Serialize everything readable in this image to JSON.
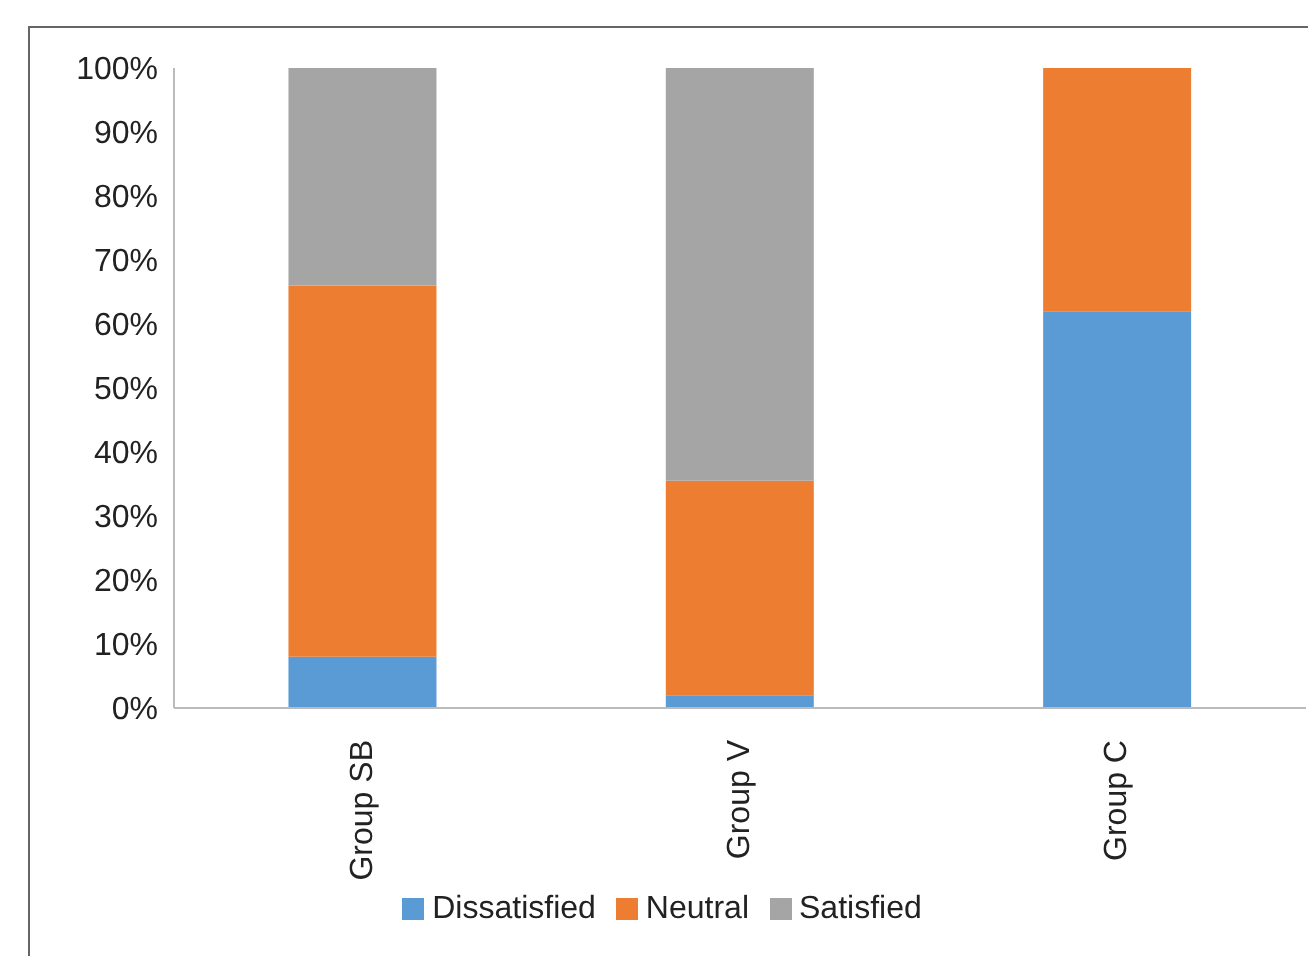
{
  "chart_data": {
    "type": "bar",
    "stacked": true,
    "categories": [
      "Group SB",
      "Group V",
      "Group C"
    ],
    "series": [
      {
        "name": "Dissatisfied",
        "color": "#5b9bd5",
        "values": [
          8,
          2,
          62
        ]
      },
      {
        "name": "Neutral",
        "color": "#ed7d31",
        "values": [
          58,
          33.5,
          38
        ]
      },
      {
        "name": "Satisfied",
        "color": "#a5a5a5",
        "values": [
          34,
          64.5,
          0
        ]
      }
    ],
    "ylim": [
      0,
      100
    ],
    "yticks": [
      {
        "value": 0,
        "label": "0%"
      },
      {
        "value": 10,
        "label": "10%"
      },
      {
        "value": 20,
        "label": "20%"
      },
      {
        "value": 30,
        "label": "30%"
      },
      {
        "value": 40,
        "label": "40%"
      },
      {
        "value": 50,
        "label": "50%"
      },
      {
        "value": 60,
        "label": "60%"
      },
      {
        "value": 70,
        "label": "70%"
      },
      {
        "value": 80,
        "label": "80%"
      },
      {
        "value": 90,
        "label": "90%"
      },
      {
        "value": 100,
        "label": "100%"
      }
    ],
    "grid": false,
    "legend": "bottom"
  }
}
